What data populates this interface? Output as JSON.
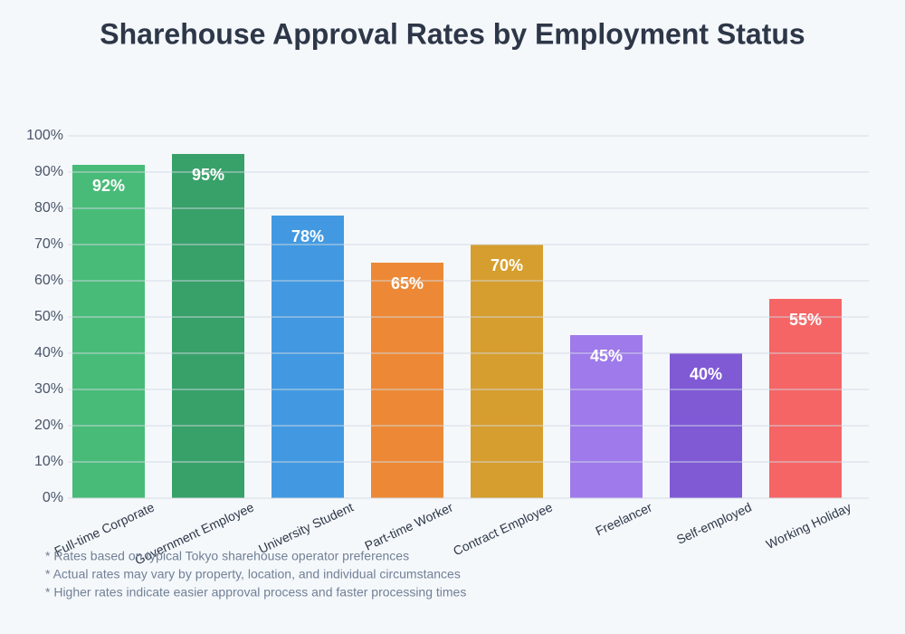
{
  "chart_data": {
    "type": "bar",
    "title": "Sharehouse Approval Rates by Employment Status",
    "categories": [
      "Full-time Corporate",
      "Government Employee",
      "University Student",
      "Part-time Worker",
      "Contract Employee",
      "Freelancer",
      "Self-employed",
      "Working Holiday"
    ],
    "values": [
      92,
      95,
      78,
      65,
      70,
      45,
      40,
      55
    ],
    "value_labels": [
      "92%",
      "95%",
      "78%",
      "65%",
      "70%",
      "45%",
      "40%",
      "55%"
    ],
    "colors": [
      "#48bb78",
      "#38a169",
      "#4299e1",
      "#ed8936",
      "#d69e2e",
      "#9f7aea",
      "#805ad5",
      "#f56565"
    ],
    "ylim": [
      0,
      100
    ],
    "yticks": [
      {
        "value": 0,
        "label": "0%"
      },
      {
        "value": 10,
        "label": "10%"
      },
      {
        "value": 20,
        "label": "20%"
      },
      {
        "value": 30,
        "label": "30%"
      },
      {
        "value": 40,
        "label": "40%"
      },
      {
        "value": 50,
        "label": "50%"
      },
      {
        "value": 60,
        "label": "60%"
      },
      {
        "value": 70,
        "label": "70%"
      },
      {
        "value": 80,
        "label": "80%"
      },
      {
        "value": 90,
        "label": "90%"
      },
      {
        "value": 100,
        "label": "100%"
      }
    ],
    "grid": true,
    "notes": [
      "* Rates based on typical Tokyo sharehouse operator preferences",
      "* Actual rates may vary by property, location, and individual circumstances",
      "* Higher rates indicate easier approval process and faster processing times"
    ]
  }
}
